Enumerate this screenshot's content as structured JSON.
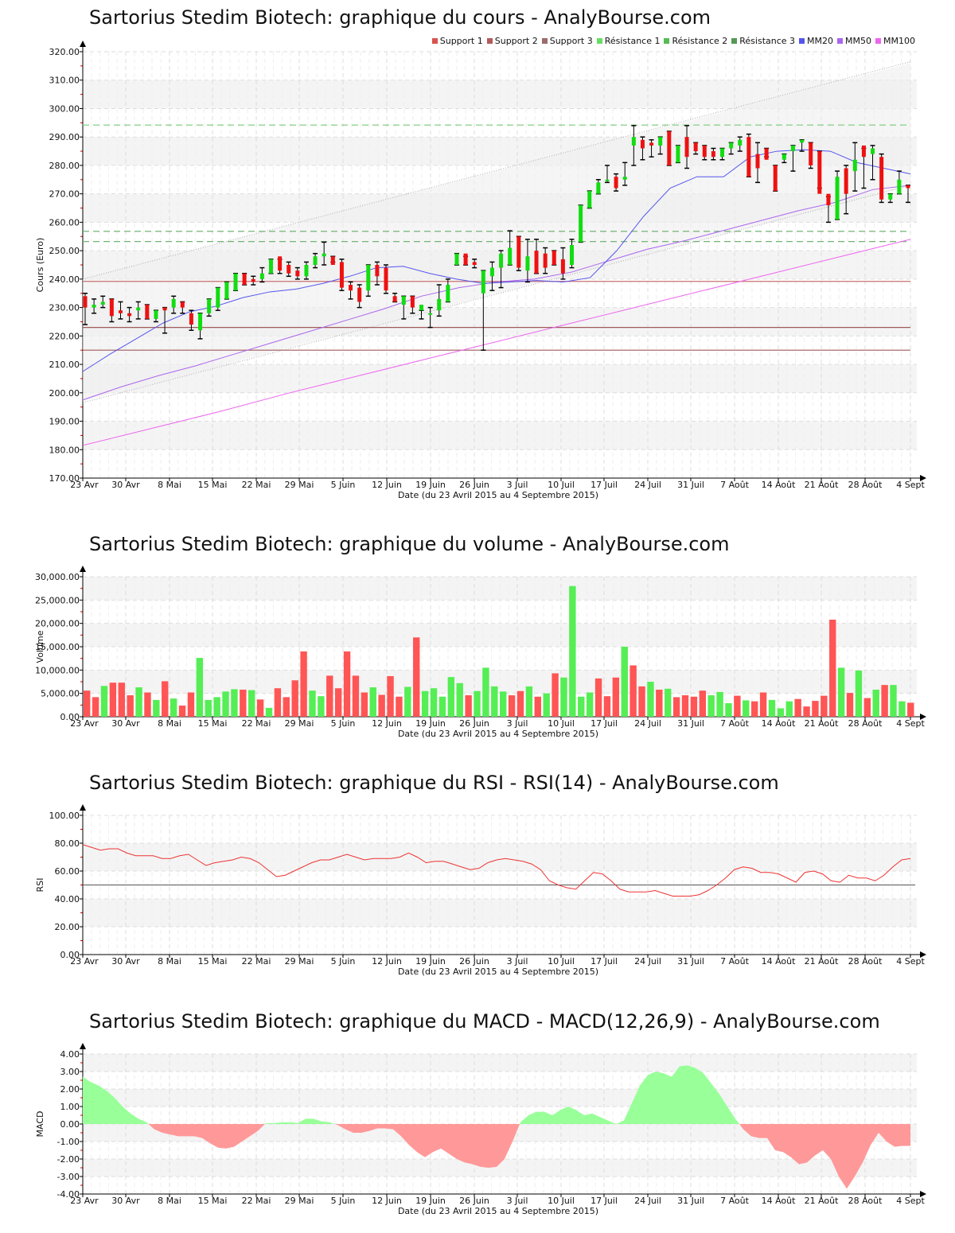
{
  "chart_data": [
    {
      "type": "candlestick",
      "title": "Sartorius Stedim Biotech: graphique du cours - AnalyBourse.com",
      "xlabel": "Date (du 23 Avril 2015 au 4 Septembre 2015)",
      "ylabel": "Cours (Euro)",
      "ylim": [
        170,
        320
      ],
      "yticks": [
        "170.00",
        "180.00",
        "190.00",
        "200.00",
        "210.00",
        "220.00",
        "230.00",
        "240.00",
        "250.00",
        "260.00",
        "270.00",
        "280.00",
        "290.00",
        "300.00",
        "310.00",
        "320.00"
      ],
      "xticks": [
        "23 Avr",
        "30 Avr",
        "8 Mai",
        "15 Mai",
        "22 Mai",
        "29 Mai",
        "5 Juin",
        "12 Juin",
        "19 Juin",
        "26 Juin",
        "3 Juil",
        "10 Juil",
        "17 Juil",
        "24 Juil",
        "31 Juil",
        "7 Août",
        "14 Août",
        "21 Août",
        "28 Août",
        "4 Sept"
      ],
      "legend": [
        {
          "label": "Support 1",
          "color": "#d9534f"
        },
        {
          "label": "Support 2",
          "color": "#b35a5a"
        },
        {
          "label": "Support 3",
          "color": "#9c6b6b"
        },
        {
          "label": "Résistance 1",
          "color": "#66dd66"
        },
        {
          "label": "Résistance 2",
          "color": "#55bb55"
        },
        {
          "label": "Résistance 3",
          "color": "#559955"
        },
        {
          "label": "MM20",
          "color": "#5555ee"
        },
        {
          "label": "MM50",
          "color": "#aa66ee"
        },
        {
          "label": "MM100",
          "color": "#ee66ee"
        }
      ],
      "support_levels": [
        239.2,
        223.0,
        215.0
      ],
      "resistance_levels": [
        294.2,
        256.8,
        253.2
      ],
      "candles": [
        [
          235,
          224,
          234,
          230
        ],
        [
          233,
          228,
          230,
          231
        ],
        [
          234,
          230,
          231,
          232
        ],
        [
          233,
          225,
          233,
          227
        ],
        [
          232,
          226,
          229,
          228
        ],
        [
          230,
          225,
          228,
          227
        ],
        [
          232,
          226,
          229,
          230
        ],
        [
          231,
          226,
          231,
          226
        ],
        [
          229,
          225,
          226,
          229
        ],
        [
          230,
          221,
          230,
          229
        ],
        [
          234,
          228,
          230,
          233
        ],
        [
          232,
          228,
          232,
          230
        ],
        [
          229,
          222,
          228,
          224
        ],
        [
          228,
          219,
          222,
          228
        ],
        [
          233,
          227,
          228,
          233
        ],
        [
          237,
          229,
          230,
          237
        ],
        [
          239,
          233,
          233,
          239
        ],
        [
          242,
          236,
          236,
          242
        ],
        [
          242,
          238,
          242,
          238
        ],
        [
          241,
          238,
          240,
          239
        ],
        [
          244,
          239,
          240,
          242
        ],
        [
          247,
          242,
          242,
          247
        ],
        [
          247,
          242,
          248,
          243
        ],
        [
          246,
          241,
          245,
          242
        ],
        [
          244,
          240,
          243,
          241
        ],
        [
          246,
          240,
          241,
          245
        ],
        [
          249,
          244,
          245,
          248
        ],
        [
          253,
          245,
          248,
          249
        ],
        [
          248,
          246,
          248,
          245
        ],
        [
          247,
          236,
          246,
          237
        ],
        [
          239,
          233,
          238,
          236
        ],
        [
          238,
          230,
          237,
          232
        ],
        [
          245,
          234,
          236,
          245
        ],
        [
          246,
          238,
          245,
          241
        ],
        [
          245,
          235,
          244,
          236
        ],
        [
          235,
          232,
          234,
          232
        ],
        [
          234,
          226,
          231,
          234
        ],
        [
          234,
          228,
          234,
          230
        ],
        [
          229,
          226,
          229,
          231
        ],
        [
          230,
          223,
          228,
          228
        ],
        [
          238,
          227,
          229,
          233
        ],
        [
          240,
          232,
          232,
          238
        ],
        [
          249,
          245,
          245,
          249
        ],
        [
          248,
          245,
          249,
          245
        ],
        [
          247,
          244,
          246,
          245
        ],
        [
          243,
          215,
          235,
          243
        ],
        [
          246,
          236,
          241,
          244
        ],
        [
          250,
          237,
          244,
          249
        ],
        [
          257,
          245,
          245,
          251
        ],
        [
          255,
          243,
          255,
          244
        ],
        [
          254,
          239,
          243,
          248
        ],
        [
          254,
          242,
          250,
          242
        ],
        [
          251,
          242,
          249,
          244
        ],
        [
          250,
          245,
          250,
          245
        ],
        [
          251,
          240,
          247,
          242
        ],
        [
          254,
          244,
          245,
          252
        ],
        [
          266,
          253,
          253,
          266
        ],
        [
          271,
          265,
          265,
          271
        ],
        [
          275,
          270,
          270,
          274
        ],
        [
          280,
          274,
          275,
          275
        ],
        [
          277,
          271,
          276,
          272
        ],
        [
          281,
          273,
          275,
          276
        ],
        [
          294,
          280,
          287,
          290
        ],
        [
          290,
          282,
          289,
          286
        ],
        [
          289,
          283,
          288,
          287
        ],
        [
          290,
          284,
          287,
          290
        ],
        [
          292,
          280,
          292,
          280
        ],
        [
          287,
          281,
          281,
          287
        ],
        [
          294,
          279,
          290,
          283
        ],
        [
          288,
          284,
          288,
          285
        ],
        [
          287,
          282,
          287,
          283
        ],
        [
          286,
          282,
          285,
          283
        ],
        [
          286,
          282,
          283,
          286
        ],
        [
          288,
          284,
          286,
          288
        ],
        [
          290,
          285,
          287,
          289
        ],
        [
          291,
          276,
          290,
          276
        ],
        [
          288,
          274,
          284,
          279
        ],
        [
          286,
          283,
          286,
          282
        ],
        [
          280,
          271,
          280,
          271
        ],
        [
          284,
          281,
          282,
          284
        ],
        [
          287,
          278,
          285,
          287
        ],
        [
          289,
          285,
          288,
          289
        ],
        [
          288,
          279,
          288,
          280
        ],
        [
          285,
          272,
          285,
          270
        ],
        [
          269,
          260,
          270,
          266
        ],
        [
          278,
          261,
          261,
          276
        ],
        [
          280,
          263,
          279,
          270
        ],
        [
          288,
          271,
          278,
          282
        ],
        [
          286,
          272,
          287,
          283
        ],
        [
          287,
          275,
          284,
          286
        ],
        [
          284,
          267,
          283,
          268
        ],
        [
          270,
          267,
          268,
          270
        ],
        [
          278,
          270,
          270,
          275
        ],
        [
          273,
          267,
          273,
          272
        ]
      ],
      "mm20": [
        207.5,
        213.5,
        219,
        224.5,
        228.5,
        230.5,
        233.5,
        235.5,
        236.5,
        238.5,
        241,
        244,
        244.5,
        242,
        240,
        238.5,
        239,
        239.5,
        239,
        240.5,
        250,
        262,
        272,
        276,
        276,
        283,
        285,
        285.5,
        285,
        281,
        279,
        277
      ],
      "mm50": [
        197.5,
        202,
        206,
        209.5,
        213.5,
        217.5,
        221.5,
        225.5,
        229.5,
        234,
        237,
        239,
        240,
        242.5,
        246.5,
        250.5,
        253.5,
        257,
        260.5,
        264,
        267,
        271.5,
        273
      ],
      "mm100": [
        181.5,
        187.5,
        193.5,
        200,
        206,
        212,
        218,
        224,
        230,
        236,
        242,
        248,
        254
      ]
    },
    {
      "type": "bar",
      "title": "Sartorius Stedim Biotech: graphique du volume - AnalyBourse.com",
      "xlabel": "Date (du 23 Avril 2015 au 4 Septembre 2015)",
      "ylabel": "Volume",
      "ylim": [
        0,
        30000
      ],
      "yticks": [
        "0.00",
        "5,000.00",
        "10,000.00",
        "15,000.00",
        "20,000.00",
        "25,000.00",
        "30,000.00"
      ],
      "xticks": [
        "23 Avr",
        "30 Avr",
        "8 Mai",
        "15 Mai",
        "22 Mai",
        "29 Mai",
        "5 Juin",
        "12 Juin",
        "19 Juin",
        "26 Juin",
        "3 Juil",
        "10 Juil",
        "17 Juil",
        "24 Juil",
        "31 Juil",
        "7 Août",
        "14 Août",
        "21 Août",
        "28 Août",
        "4 Sept"
      ],
      "values": [
        5600,
        4200,
        6600,
        7300,
        7300,
        4600,
        6300,
        5200,
        3600,
        7600,
        3900,
        2400,
        5200,
        12600,
        3600,
        4200,
        5400,
        5900,
        5800,
        5700,
        3700,
        1900,
        6100,
        4200,
        7800,
        14000,
        5600,
        4400,
        8800,
        6100,
        14000,
        8800,
        5200,
        6300,
        4700,
        8700,
        4300,
        6400,
        17000,
        5500,
        6100,
        4300,
        8500,
        7200,
        4600,
        5500,
        10500,
        6500,
        5400,
        4600,
        5500,
        6500,
        4300,
        5000,
        9300,
        8400,
        28000,
        4300,
        5200,
        8200,
        4400,
        8400,
        15000,
        11000,
        6500,
        7500,
        5800,
        6000,
        4200,
        4600,
        4300,
        5600,
        4600,
        5300,
        2900,
        4500,
        3500,
        3300,
        5200,
        3600,
        1800,
        3300,
        3800,
        2200,
        3400,
        4500,
        20800,
        10500,
        5100,
        9900,
        4000,
        5800,
        6800,
        6800,
        3300,
        3000
      ],
      "colors": [
        "r",
        "r",
        "g",
        "r",
        "r",
        "r",
        "g",
        "r",
        "g",
        "r",
        "g",
        "r",
        "r",
        "g",
        "g",
        "g",
        "g",
        "g",
        "r",
        "g",
        "r",
        "g",
        "r",
        "r",
        "r",
        "r",
        "g",
        "g",
        "r",
        "r",
        "r",
        "r",
        "r",
        "g",
        "r",
        "r",
        "r",
        "g",
        "r",
        "g",
        "g",
        "g",
        "g",
        "g",
        "r",
        "g",
        "g",
        "g",
        "g",
        "r",
        "r",
        "g",
        "r",
        "g",
        "r",
        "g",
        "g",
        "g",
        "g",
        "r",
        "r",
        "r",
        "g",
        "r",
        "r",
        "g",
        "r",
        "g",
        "r",
        "r",
        "r",
        "r",
        "g",
        "g",
        "g",
        "r",
        "g",
        "r",
        "r",
        "g",
        "g",
        "g",
        "r",
        "r",
        "r",
        "r",
        "r",
        "g",
        "r",
        "g",
        "r",
        "g",
        "r",
        "g",
        "g",
        "r"
      ]
    },
    {
      "type": "line",
      "title": "Sartorius Stedim Biotech: graphique du RSI - RSI(14) - AnalyBourse.com",
      "xlabel": "Date (du 23 Avril 2015 au 4 Septembre 2015)",
      "ylabel": "RSI",
      "ylim": [
        0,
        100
      ],
      "reference_line": 50,
      "yticks": [
        "0.00",
        "20.00",
        "40.00",
        "60.00",
        "80.00",
        "100.00"
      ],
      "xticks": [
        "23 Avr",
        "30 Avr",
        "8 Mai",
        "15 Mai",
        "22 Mai",
        "29 Mai",
        "5 Juin",
        "12 Juin",
        "19 Juin",
        "26 Juin",
        "3 Juil",
        "10 Juil",
        "17 Juil",
        "24 Juil",
        "31 Juil",
        "7 Août",
        "14 Août",
        "21 Août",
        "28 Août",
        "4 Sept"
      ],
      "values": [
        79,
        77,
        75,
        76,
        76,
        73,
        71,
        71,
        71,
        69,
        69,
        71,
        72,
        68,
        64,
        66,
        67,
        68,
        70,
        69,
        66,
        61,
        56,
        57,
        60,
        63,
        66,
        68,
        68,
        70,
        72,
        70,
        68,
        69,
        69,
        69,
        70,
        73,
        70,
        66,
        67,
        67,
        65,
        63,
        61,
        62,
        66,
        68,
        69,
        68,
        67,
        65,
        61,
        53,
        50,
        48,
        47,
        53,
        59,
        58,
        53,
        47,
        45,
        45,
        45,
        46,
        44,
        42,
        42,
        42,
        43,
        46,
        50,
        55,
        61,
        63,
        62,
        59,
        59,
        58,
        55,
        52,
        59,
        60,
        58,
        53,
        52,
        57,
        55,
        55,
        53,
        57,
        63,
        68,
        69
      ]
    },
    {
      "type": "area",
      "title": "Sartorius Stedim Biotech: graphique du MACD - MACD(12,26,9) - AnalyBourse.com",
      "xlabel": "Date (du 23 Avril 2015 au 4 Septembre 2015)",
      "ylabel": "MACD",
      "ylim": [
        -4,
        4
      ],
      "yticks": [
        "-4.00",
        "-3.00",
        "-2.00",
        "-1.00",
        "0.00",
        "1.00",
        "2.00",
        "3.00",
        "4.00"
      ],
      "xticks": [
        "23 Avr",
        "30 Avr",
        "8 Mai",
        "15 Mai",
        "22 Mai",
        "29 Mai",
        "5 Juin",
        "12 Juin",
        "19 Juin",
        "26 Juin",
        "3 Juil",
        "10 Juil",
        "17 Juil",
        "24 Juil",
        "31 Juil",
        "7 Août",
        "14 Août",
        "21 Août",
        "28 Août",
        "4 Sept"
      ],
      "values": [
        2.7,
        2.4,
        2.2,
        1.9,
        1.5,
        1.0,
        0.6,
        0.3,
        0.1,
        -0.3,
        -0.5,
        -0.6,
        -0.7,
        -0.7,
        -0.7,
        -0.8,
        -1.1,
        -1.35,
        -1.4,
        -1.3,
        -1.0,
        -0.7,
        -0.4,
        0.05,
        0.05,
        0.1,
        0.1,
        0.05,
        0.3,
        0.3,
        0.15,
        0.1,
        -0.05,
        -0.3,
        -0.5,
        -0.5,
        -0.4,
        -0.25,
        -0.25,
        -0.3,
        -0.7,
        -1.2,
        -1.6,
        -1.9,
        -1.6,
        -1.4,
        -1.7,
        -2.0,
        -2.2,
        -2.3,
        -2.45,
        -2.5,
        -2.45,
        -2.0,
        -1.0,
        0.1,
        0.5,
        0.7,
        0.7,
        0.5,
        0.8,
        1.0,
        0.8,
        0.5,
        0.6,
        0.4,
        0.2,
        0.0,
        0.2,
        1.2,
        2.2,
        2.8,
        3.0,
        2.9,
        2.7,
        3.3,
        3.35,
        3.2,
        2.9,
        2.3,
        1.7,
        1.0,
        0.3,
        -0.3,
        -0.7,
        -0.8,
        -0.8,
        -1.5,
        -1.6,
        -1.9,
        -2.3,
        -2.2,
        -1.8,
        -1.5,
        -2.0,
        -3.0,
        -3.7,
        -3.0,
        -2.2,
        -1.2,
        -0.5,
        -1.0,
        -1.3,
        -1.25,
        -1.25
      ]
    }
  ]
}
